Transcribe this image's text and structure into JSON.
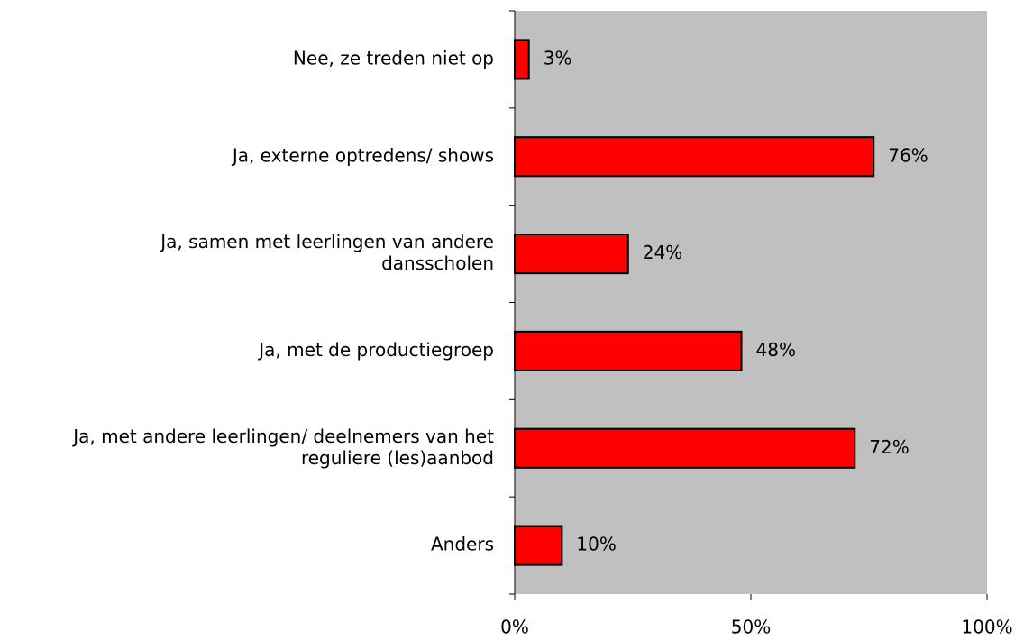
{
  "chart_data": {
    "type": "bar",
    "orientation": "horizontal",
    "categories": [
      "Nee, ze treden niet op",
      "Ja, externe optredens/ shows",
      [
        "Ja, samen met leerlingen van andere",
        "dansscholen"
      ],
      "Ja, met de productiegroep",
      [
        "Ja, met andere leerlingen/ deelnemers van het",
        "reguliere (les)aanbod"
      ],
      "Anders"
    ],
    "values": [
      3,
      76,
      24,
      48,
      72,
      10
    ],
    "value_labels": [
      "3%",
      "76%",
      "24%",
      "48%",
      "72%",
      "10%"
    ],
    "color": "#ff0000",
    "xlim": [
      0,
      100
    ],
    "xticks": [
      {
        "value": 0,
        "label": "0%"
      },
      {
        "value": 50,
        "label": "50%"
      },
      {
        "value": 100,
        "label": "100%"
      }
    ],
    "background": "#c0c0c0"
  }
}
